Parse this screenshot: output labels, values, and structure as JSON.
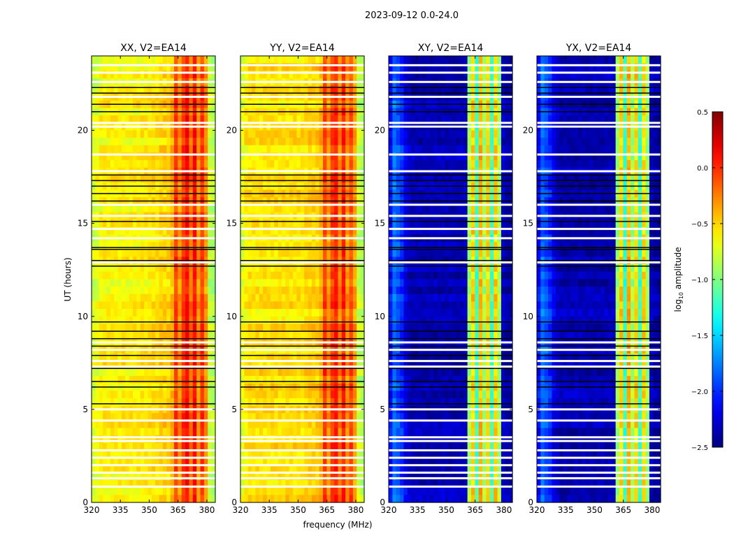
{
  "chart_data": {
    "type": "heatmap",
    "title": "2023-09-12 0.0-24.0",
    "xlabel": "frequency (MHz)",
    "ylabel": "UT (hours)",
    "xlim": [
      320,
      384.4
    ],
    "ylim": [
      0,
      24
    ],
    "xticks": [
      "320",
      "335",
      "350",
      "365",
      "380"
    ],
    "xtick_values": [
      320,
      335,
      350,
      365,
      380
    ],
    "yticks": [
      "0",
      "5",
      "10",
      "15",
      "20"
    ],
    "ytick_values": [
      0,
      5,
      10,
      15,
      20
    ],
    "colorbar": {
      "label": "log10 amplitude",
      "label_main": "log",
      "label_sub": "10",
      "label_rest": " amplitude",
      "range": [
        -2.5,
        0.5
      ],
      "colormap": "jet",
      "ticks": [
        "0.5",
        "0.0",
        "−0.5",
        "−1.0",
        "−1.5",
        "−2.0",
        "−2.5"
      ],
      "tick_values": [
        0.5,
        0.0,
        -0.5,
        -1.0,
        -1.5,
        -2.0,
        -2.5
      ]
    },
    "profile_freqs": [
      320,
      322,
      324,
      326,
      328,
      330,
      332,
      334,
      336,
      338,
      340,
      342,
      344,
      346,
      348,
      350,
      352,
      354,
      356,
      358,
      360,
      362,
      364,
      366,
      368,
      370,
      372,
      374,
      376,
      378,
      380,
      382,
      384
    ],
    "panels": [
      {
        "title": "XX, V2=EA14",
        "profile": [
          -0.75,
          -0.7,
          -0.62,
          -0.6,
          -0.6,
          -0.6,
          -0.6,
          -0.6,
          -0.6,
          -0.6,
          -0.6,
          -0.6,
          -0.6,
          -0.58,
          -0.58,
          -0.57,
          -0.55,
          -0.55,
          -0.5,
          -0.5,
          -0.5,
          -0.4,
          -0.05,
          -0.3,
          -0.05,
          0.1,
          -0.2,
          0.1,
          -0.3,
          -0.05,
          -0.3,
          -0.8,
          -0.85
        ]
      },
      {
        "title": "YY, V2=EA14",
        "profile": [
          -0.7,
          -0.6,
          -0.55,
          -0.55,
          -0.55,
          -0.55,
          -0.55,
          -0.55,
          -0.55,
          -0.55,
          -0.55,
          -0.55,
          -0.55,
          -0.55,
          -0.55,
          -0.55,
          -0.55,
          -0.52,
          -0.5,
          -0.5,
          -0.48,
          -0.4,
          -0.05,
          -0.3,
          -0.05,
          0.05,
          -0.25,
          0.05,
          -0.3,
          -0.1,
          -0.35,
          -0.8,
          -0.85
        ]
      },
      {
        "title": "XY, V2=EA14",
        "profile": [
          -2.1,
          -1.8,
          -1.9,
          -2.0,
          -2.2,
          -2.3,
          -2.35,
          -2.35,
          -2.35,
          -2.35,
          -2.35,
          -2.35,
          -2.35,
          -2.35,
          -2.35,
          -2.35,
          -2.35,
          -2.35,
          -2.35,
          -2.35,
          -2.35,
          -0.9,
          -0.5,
          -1.2,
          -0.4,
          -0.9,
          -0.5,
          -1.2,
          -0.5,
          -0.9,
          -2.3,
          -2.4,
          -2.4
        ]
      },
      {
        "title": "YX, V2=EA14",
        "profile": [
          -2.1,
          -1.8,
          -1.9,
          -2.0,
          -2.2,
          -2.3,
          -2.35,
          -2.35,
          -2.35,
          -2.35,
          -2.35,
          -2.35,
          -2.35,
          -2.35,
          -2.35,
          -2.35,
          -2.35,
          -2.35,
          -2.35,
          -2.35,
          -2.35,
          -0.9,
          -0.5,
          -1.2,
          -0.4,
          -0.9,
          -0.5,
          -1.2,
          -0.5,
          -0.9,
          -2.3,
          -2.4,
          -2.4
        ]
      }
    ],
    "flagged_hours_white": [
      0.85,
      1.3,
      1.6,
      2.0,
      2.4,
      2.8,
      3.3,
      3.5,
      4.4,
      5.0,
      7.3,
      7.6,
      8.2,
      8.6,
      12.9,
      14.2,
      14.7,
      15.4,
      16.0,
      17.8,
      18.7,
      20.2,
      20.4,
      21.8,
      22.6,
      23.1,
      23.5
    ],
    "flagged_hours_black": [
      5.3,
      6.2,
      6.5,
      7.2,
      7.9,
      8.4,
      8.8,
      9.2,
      9.7,
      12.7,
      13.0,
      13.6,
      13.7,
      15.1,
      16.2,
      16.6,
      17.0,
      17.3,
      17.6,
      21.0,
      21.4,
      22.0,
      22.3
    ]
  }
}
